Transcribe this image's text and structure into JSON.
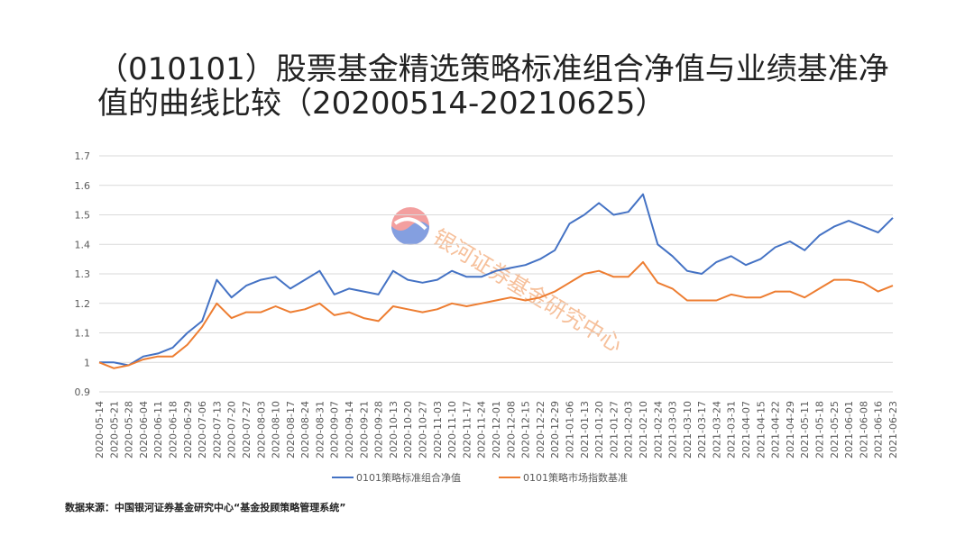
{
  "chart_data": {
    "type": "line",
    "title": [
      "（010101）股票基金精选策略标准组合净值与业绩基准净",
      "值的曲线比较（20200514-20210625）"
    ],
    "watermark": "银河证券基金研究中心",
    "source": "数据来源：中国银河证券基金研究中心“基金投顾策略管理系统”",
    "categories": [
      "2020-05-14",
      "2020-05-21",
      "2020-05-28",
      "2020-06-04",
      "2020-06-11",
      "2020-06-18",
      "2020-06-29",
      "2020-07-06",
      "2020-07-13",
      "2020-07-20",
      "2020-07-27",
      "2020-08-03",
      "2020-08-10",
      "2020-08-17",
      "2020-08-24",
      "2020-08-31",
      "2020-09-07",
      "2020-09-14",
      "2020-09-21",
      "2020-09-28",
      "2020-10-13",
      "2020-10-20",
      "2020-10-27",
      "2020-11-03",
      "2020-11-10",
      "2020-11-17",
      "2020-11-24",
      "2020-12-01",
      "2020-12-08",
      "2020-12-15",
      "2020-12-22",
      "2020-12-29",
      "2021-01-06",
      "2021-01-13",
      "2021-01-20",
      "2021-01-27",
      "2021-02-03",
      "2021-02-10",
      "2021-02-24",
      "2021-03-03",
      "2021-03-10",
      "2021-03-17",
      "2021-03-24",
      "2021-03-31",
      "2021-04-07",
      "2021-04-15",
      "2021-04-22",
      "2021-04-29",
      "2021-05-11",
      "2021-05-18",
      "2021-05-25",
      "2021-06-01",
      "2021-06-08",
      "2021-06-16",
      "2021-06-23"
    ],
    "series": [
      {
        "name": "0101策略标准组合净值",
        "color": "#4472c4",
        "values": [
          1.0,
          1.0,
          0.99,
          1.02,
          1.03,
          1.05,
          1.1,
          1.14,
          1.28,
          1.22,
          1.26,
          1.28,
          1.29,
          1.25,
          1.28,
          1.31,
          1.23,
          1.25,
          1.24,
          1.23,
          1.31,
          1.28,
          1.27,
          1.28,
          1.31,
          1.29,
          1.29,
          1.31,
          1.32,
          1.33,
          1.35,
          1.38,
          1.47,
          1.5,
          1.54,
          1.5,
          1.51,
          1.57,
          1.4,
          1.36,
          1.31,
          1.3,
          1.34,
          1.36,
          1.33,
          1.35,
          1.39,
          1.41,
          1.38,
          1.43,
          1.46,
          1.48,
          1.46,
          1.44,
          1.49
        ]
      },
      {
        "name": "0101策略市场指数基准",
        "color": "#ed7d31",
        "values": [
          1.0,
          0.98,
          0.99,
          1.01,
          1.02,
          1.02,
          1.06,
          1.12,
          1.2,
          1.15,
          1.17,
          1.17,
          1.19,
          1.17,
          1.18,
          1.2,
          1.16,
          1.17,
          1.15,
          1.14,
          1.19,
          1.18,
          1.17,
          1.18,
          1.2,
          1.19,
          1.2,
          1.21,
          1.22,
          1.21,
          1.22,
          1.24,
          1.27,
          1.3,
          1.31,
          1.29,
          1.29,
          1.34,
          1.27,
          1.25,
          1.21,
          1.21,
          1.21,
          1.23,
          1.22,
          1.22,
          1.24,
          1.24,
          1.22,
          1.25,
          1.28,
          1.28,
          1.27,
          1.24,
          1.26
        ]
      }
    ],
    "ylim": [
      0.9,
      1.7
    ],
    "yticks": [
      0.9,
      1,
      1.1,
      1.2,
      1.3,
      1.4,
      1.5,
      1.6,
      1.7
    ],
    "grid": true
  }
}
